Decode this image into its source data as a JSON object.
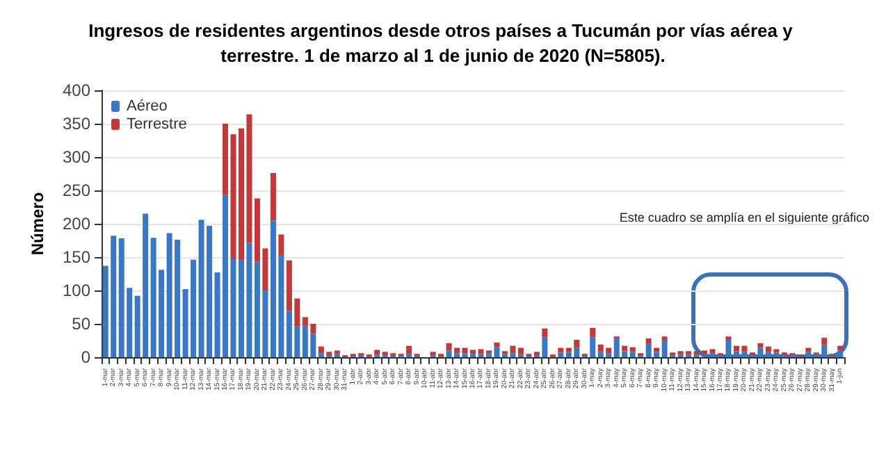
{
  "chart_data": {
    "type": "bar",
    "title": "Ingresos de residentes argentinos desde otros países a Tucumán por vías aérea y terrestre. 1 de marzo al 1 de junio de 2020 (N=5805).",
    "ylabel": "Número",
    "categories": [
      "1-mar",
      "2-mar",
      "3-mar",
      "4-mar",
      "5-mar",
      "6-mar",
      "7-mar",
      "8-mar",
      "9-mar",
      "10-mar",
      "11-mar",
      "12-mar",
      "13-mar",
      "14-mar",
      "15-mar",
      "16-mar",
      "17-mar",
      "18-mar",
      "19-mar",
      "20-mar",
      "21-mar",
      "22-mar",
      "23-mar",
      "24-mar",
      "25-mar",
      "26-mar",
      "27-mar",
      "28-mar",
      "29-mar",
      "30-mar",
      "31-mar",
      "1-abr",
      "2-abr",
      "3-abr",
      "4-abr",
      "5-abr",
      "6-abr",
      "7-abr",
      "8-abr",
      "9-abr",
      "10-abr",
      "11-abr",
      "12-abr",
      "13-abr",
      "14-abr",
      "15-abr",
      "16-abr",
      "17-abr",
      "18-abr",
      "19-abr",
      "20-abr",
      "21-abr",
      "22-abr",
      "23-abr",
      "24-abr",
      "25-abr",
      "26-abr",
      "27-abr",
      "28-abr",
      "29-abr",
      "30-abr",
      "1-may",
      "2-may",
      "3-may",
      "4-may",
      "5-may",
      "6-may",
      "7-may",
      "8-may",
      "9-may",
      "10-may",
      "11-may",
      "12-may",
      "13-may",
      "14-may",
      "15-may",
      "16-may",
      "17-may",
      "18-may",
      "19-may",
      "20-may",
      "21-may",
      "22-may",
      "23-may",
      "24-may",
      "25-may",
      "26-may",
      "27-may",
      "28-may",
      "29-may",
      "30-may",
      "31-may",
      "1-jun"
    ],
    "stacked": true,
    "series": [
      {
        "name": "Aéreo",
        "color": "#3b78c4",
        "values": [
          137,
          182,
          178,
          104,
          92,
          215,
          179,
          131,
          186,
          176,
          102,
          146,
          206,
          197,
          127,
          243,
          148,
          147,
          171,
          143,
          100,
          205,
          153,
          69,
          46,
          47,
          35,
          6,
          2,
          5,
          1,
          2,
          2,
          1,
          4,
          3,
          2,
          2,
          5,
          2,
          0,
          3,
          1,
          10,
          6,
          6,
          5,
          5,
          6,
          15,
          5,
          6,
          4,
          2,
          3,
          30,
          1,
          7,
          8,
          14,
          2,
          30,
          8,
          6,
          28,
          9,
          8,
          2,
          20,
          8,
          25,
          3,
          4,
          4,
          4,
          5,
          6,
          3,
          26,
          9,
          8,
          3,
          14,
          8,
          7,
          3,
          3,
          1,
          8,
          4,
          18,
          2,
          10
        ]
      },
      {
        "name": "Terrestre",
        "color": "#c0393b",
        "values": [
          0,
          0,
          0,
          0,
          0,
          0,
          0,
          0,
          0,
          0,
          0,
          0,
          0,
          0,
          0,
          107,
          186,
          196,
          193,
          95,
          63,
          71,
          31,
          76,
          42,
          13,
          15,
          10,
          6,
          5,
          2,
          3,
          4,
          3,
          7,
          5,
          4,
          3,
          12,
          3,
          0,
          5,
          4,
          11,
          8,
          8,
          6,
          7,
          4,
          7,
          4,
          11,
          10,
          3,
          5,
          13,
          3,
          7,
          6,
          12,
          3,
          14,
          11,
          8,
          3,
          8,
          7,
          4,
          8,
          6,
          6,
          4,
          5,
          5,
          5,
          5,
          6,
          3,
          5,
          8,
          9,
          4,
          7,
          8,
          5,
          4,
          3,
          2,
          6,
          3,
          11,
          3,
          7
        ]
      }
    ],
    "ylim": [
      0,
      400
    ],
    "yticks": [
      0,
      50,
      100,
      150,
      200,
      250,
      300,
      350,
      400
    ],
    "grid": "y",
    "legend": "top left",
    "annotations": [
      "Este cuadro se amplía en el siguiente gráfico"
    ]
  }
}
